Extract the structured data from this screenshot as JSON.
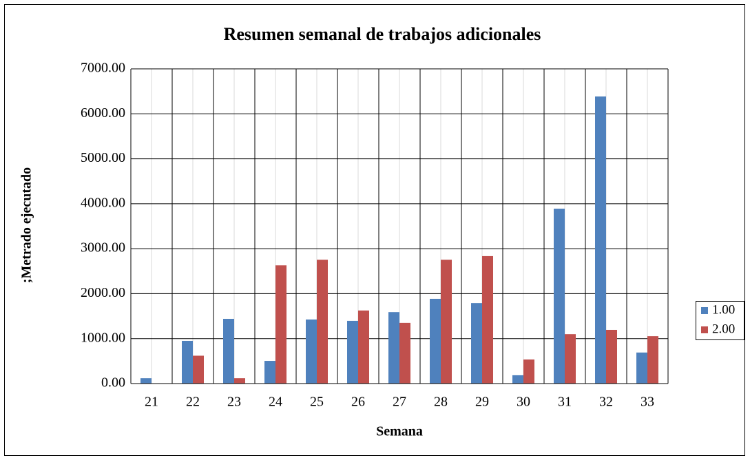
{
  "chart_data": {
    "type": "bar",
    "title": "Resumen semanal de trabajos adicionales",
    "x_label": "Semana",
    "y_label": ";Metrado ejecutado",
    "categories": [
      "21",
      "22",
      "23",
      "24",
      "25",
      "26",
      "27",
      "28",
      "29",
      "30",
      "31",
      "32",
      "33"
    ],
    "series": [
      {
        "name": "1.00",
        "color": "#4f81bd",
        "values": [
          120,
          950,
          1440,
          505,
          1425,
          1395,
          1590,
          1885,
          1790,
          185,
          3890,
          6385,
          690
        ]
      },
      {
        "name": "2.00",
        "color": "#c0504d",
        "values": [
          0,
          620,
          120,
          2630,
          2755,
          1625,
          1350,
          2755,
          2835,
          535,
          1100,
          1195,
          1055
        ]
      }
    ],
    "ylim": [
      0,
      7000
    ],
    "yticks": [
      {
        "value": 0,
        "label": "0.00"
      },
      {
        "value": 1000,
        "label": "1000.00"
      },
      {
        "value": 2000,
        "label": "2000.00"
      },
      {
        "value": 3000,
        "label": "3000.00"
      },
      {
        "value": 4000,
        "label": "4000.00"
      },
      {
        "value": 5000,
        "label": "5000.00"
      },
      {
        "value": 6000,
        "label": "6000.00"
      },
      {
        "value": 7000,
        "label": "7000.00"
      }
    ],
    "grid": true,
    "legend": "right"
  }
}
